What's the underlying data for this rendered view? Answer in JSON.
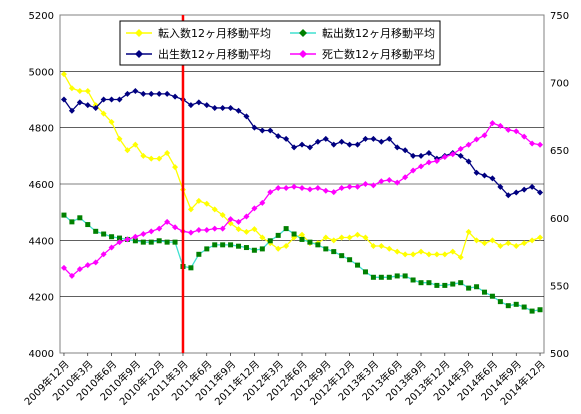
{
  "chart_data": {
    "type": "line",
    "title": "",
    "xlabel": "",
    "ylabel": "",
    "y_left": {
      "min": 4000,
      "max": 5200,
      "ticks": [
        4000,
        4200,
        4400,
        4600,
        4800,
        5000,
        5200
      ]
    },
    "y_right": {
      "min": 500,
      "max": 750,
      "ticks": [
        500,
        550,
        600,
        650,
        700,
        750
      ]
    },
    "x_tick_labels": [
      "2009年12月",
      "2010年3月",
      "2010年6月",
      "2010年9月",
      "2010年12月",
      "2011年3月",
      "2011年6月",
      "2011年9月",
      "2011年12月",
      "2012年3月",
      "2012年6月",
      "2012年9月",
      "2012年12月",
      "2013年3月",
      "2013年6月",
      "2013年9月",
      "2013年12月",
      "2014年3月",
      "2014年6月",
      "2014年9月",
      "2014年12月"
    ],
    "x_count": 61,
    "grid": true,
    "legend_position": "top",
    "annotation": {
      "type": "vertical-line",
      "x_index": 15,
      "color": "#ff0000"
    },
    "series": [
      {
        "name": "転入数12ヶ月移動平均",
        "axis": "left",
        "color": "#ffff00",
        "marker": "diamond",
        "values": [
          4990,
          4940,
          4930,
          4930,
          4880,
          4850,
          4820,
          4760,
          4720,
          4740,
          4700,
          4690,
          4690,
          4710,
          4660,
          4580,
          4510,
          4540,
          4530,
          4510,
          4490,
          4460,
          4440,
          4430,
          4440,
          4410,
          4390,
          4370,
          4380,
          4410,
          4420,
          4390,
          4390,
          4410,
          4400,
          4410,
          4410,
          4420,
          4410,
          4380,
          4380,
          4370,
          4360,
          4350,
          4350,
          4360,
          4350,
          4350,
          4350,
          4360,
          4340,
          4430,
          4400,
          4390,
          4400,
          4380,
          4390,
          4380,
          4390,
          4400,
          4410
        ]
      },
      {
        "name": "出生数12ヶ月移動平均",
        "axis": "left",
        "color": "#000080",
        "marker": "diamond",
        "values": [
          4900,
          4860,
          4890,
          4880,
          4870,
          4900,
          4900,
          4900,
          4920,
          4930,
          4920,
          4920,
          4920,
          4920,
          4910,
          4900,
          4880,
          4890,
          4880,
          4870,
          4870,
          4870,
          4860,
          4840,
          4800,
          4790,
          4790,
          4770,
          4760,
          4730,
          4740,
          4730,
          4750,
          4760,
          4740,
          4750,
          4740,
          4740,
          4760,
          4760,
          4750,
          4760,
          4730,
          4720,
          4700,
          4700,
          4710,
          4690,
          4700,
          4710,
          4700,
          4680,
          4640,
          4630,
          4620,
          4590,
          4560,
          4570,
          4580,
          4590,
          4570
        ]
      },
      {
        "name": "転出数12ヶ月移動平均",
        "axis": "right",
        "color": "#40e0d0",
        "marker": "square",
        "values": [
          602,
          597,
          600,
          595,
          590,
          588,
          586,
          585,
          584,
          583,
          582,
          582,
          583,
          582,
          582,
          564,
          563,
          573,
          577,
          580,
          580,
          580,
          579,
          578,
          576,
          577,
          583,
          587,
          592,
          588,
          584,
          582,
          580,
          577,
          575,
          572,
          569,
          565,
          560,
          556,
          556,
          556,
          557,
          557,
          554,
          552,
          552,
          550,
          550,
          551,
          552,
          548,
          549,
          545,
          542,
          538,
          535,
          536,
          534,
          531,
          532
        ]
      },
      {
        "name": "死亡数12ヶ月移動平均",
        "axis": "right",
        "color": "#ff00ff",
        "marker": "diamond",
        "values": [
          563,
          557,
          562,
          565,
          567,
          573,
          578,
          582,
          584,
          586,
          588,
          590,
          592,
          597,
          593,
          590,
          589,
          591,
          591,
          592,
          592,
          599,
          597,
          601,
          607,
          611,
          619,
          622,
          622,
          623,
          622,
          621,
          622,
          620,
          619,
          622,
          623,
          623,
          625,
          624,
          627,
          628,
          626,
          630,
          635,
          638,
          641,
          642,
          645,
          647,
          651,
          654,
          658,
          661,
          670,
          668,
          665,
          664,
          660,
          655,
          654
        ]
      }
    ],
    "fill_colors": {
      "turnyu_fill": "#ffff00",
      "turnyu_line": "#ffff00",
      "tenshutsu_fill": "#008000",
      "tenshutsu_line": "#40e0d0",
      "shusshou_fill": "#000080",
      "shiboo_fill": "#ff00ff"
    }
  }
}
